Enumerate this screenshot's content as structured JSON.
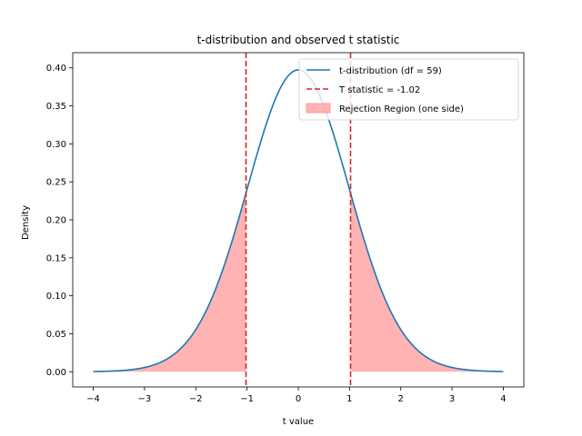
{
  "chart_data": {
    "type": "line",
    "title": "t-distribution and observed t statistic",
    "xlabel": "t value",
    "ylabel": "Density",
    "xlim": [
      -4.4,
      4.4
    ],
    "ylim": [
      -0.02,
      0.42
    ],
    "x_ticks": [
      -4,
      -3,
      -2,
      -1,
      0,
      1,
      2,
      3,
      4
    ],
    "x_tick_labels": [
      "−4",
      "−3",
      "−2",
      "−1",
      "0",
      "1",
      "2",
      "3",
      "4"
    ],
    "y_ticks": [
      0.0,
      0.05,
      0.1,
      0.15,
      0.2,
      0.25,
      0.3,
      0.35,
      0.4
    ],
    "y_tick_labels": [
      "0.00",
      "0.05",
      "0.10",
      "0.15",
      "0.20",
      "0.25",
      "0.30",
      "0.35",
      "0.40"
    ],
    "grid": false,
    "legend_position": "top-right",
    "series": [
      {
        "name": "t-distribution (df = 59)",
        "kind": "line",
        "color": "#1f77b4",
        "df": 59,
        "x_range": [
          -4,
          4
        ]
      },
      {
        "name": "T statistic = -1.02",
        "kind": "vline",
        "color": "#d62728",
        "dashed": true,
        "x_values": [
          -1.02,
          1.02
        ]
      },
      {
        "name": "Rejection Region (one side)",
        "kind": "area",
        "color": "#ff9999",
        "regions": [
          [
            -4,
            -1.02
          ],
          [
            1.02,
            4
          ]
        ]
      }
    ]
  }
}
